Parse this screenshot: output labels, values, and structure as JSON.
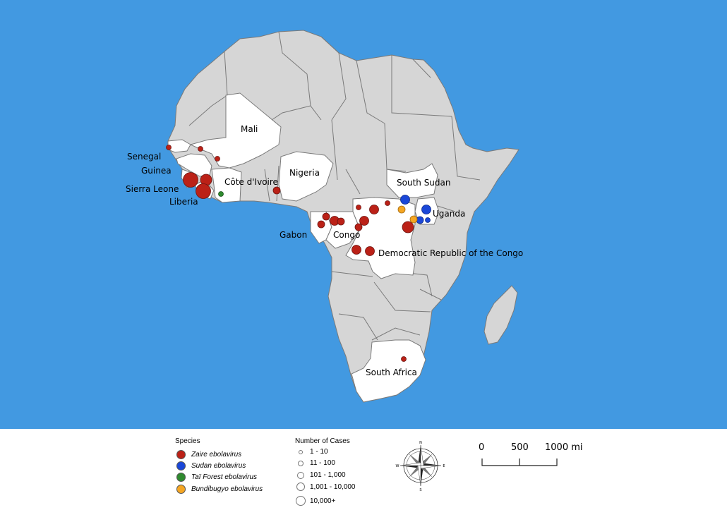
{
  "map": {
    "ocean_color": "#4299e1",
    "land_color": "#d6d6d6",
    "highlight_color": "#ffffff",
    "border_color": "#7a7a7a",
    "countries": [
      {
        "id": "senegal",
        "label": "Senegal"
      },
      {
        "id": "guinea",
        "label": "Guinea"
      },
      {
        "id": "sierra-leone",
        "label": "Sierra Leone"
      },
      {
        "id": "liberia",
        "label": "Liberia"
      },
      {
        "id": "mali",
        "label": "Mali"
      },
      {
        "id": "cote-divoire",
        "label": "Côte d'Ivoire"
      },
      {
        "id": "nigeria",
        "label": "Nigeria"
      },
      {
        "id": "gabon",
        "label": "Gabon"
      },
      {
        "id": "congo",
        "label": "Congo"
      },
      {
        "id": "south-sudan",
        "label": "South Sudan"
      },
      {
        "id": "uganda",
        "label": "Uganda"
      },
      {
        "id": "drc",
        "label": "Democratic Republic of the Congo"
      },
      {
        "id": "south-africa",
        "label": "South Africa"
      }
    ],
    "species_colors": {
      "zaire": "#bb2117",
      "sudan": "#1a47d8",
      "tai": "#2f8a2f",
      "bundibugyo": "#f5a623"
    }
  },
  "legend": {
    "species_title": "Species",
    "species": [
      {
        "key": "zaire",
        "label": "Zaire ebolavirus",
        "color": "#bb2117"
      },
      {
        "key": "sudan",
        "label": "Sudan ebolavirus",
        "color": "#1a47d8"
      },
      {
        "key": "tai",
        "label": "Taï Forest ebolavirus",
        "color": "#2f8a2f"
      },
      {
        "key": "bundibugyo",
        "label": "Bundibugyo ebolavirus",
        "color": "#f5a623"
      }
    ],
    "cases_title": "Number of Cases",
    "cases": [
      "1 - 10",
      "11 - 100",
      "101 - 1,000",
      "1,001 - 10,000",
      "10,000+"
    ]
  },
  "compass": {
    "n": "N",
    "s": "S",
    "e": "E",
    "w": "W"
  },
  "scale": {
    "labels": [
      "0",
      "500",
      "1000 mi"
    ]
  }
}
